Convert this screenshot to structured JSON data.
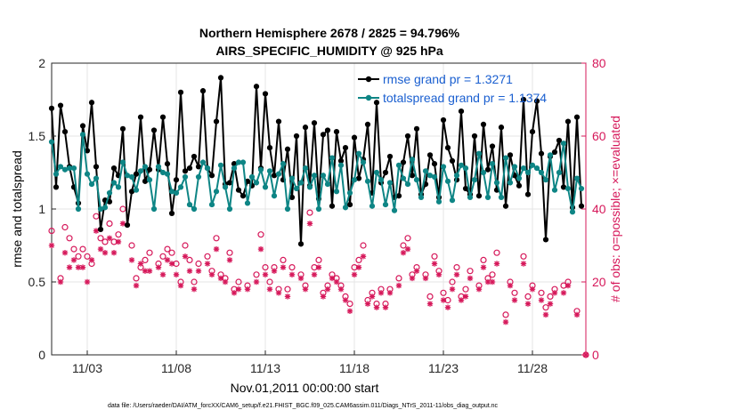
{
  "chart_data": {
    "type": "line",
    "title": "Northern Hemisphere 2678 / 2825 = 94.796%",
    "subtitle": "AIRS_SPECIFIC_HUMIDITY @ 925 hPa",
    "xlabel": "Nov.01,2011 00:00:00 start",
    "ylabel": "rmse and totalspread",
    "ylabel_right": "# of obs: o=possible; ×=evaluated",
    "xlim": [
      1,
      31
    ],
    "ylim": [
      0,
      2
    ],
    "ylim_right": [
      0,
      80
    ],
    "x_tick_labels": [
      "11/03",
      "11/08",
      "11/13",
      "11/18",
      "11/23",
      "11/28"
    ],
    "x_ticks": [
      3,
      8,
      13,
      18,
      23,
      28
    ],
    "y_tick_labels": [
      "0",
      "0.5",
      "1",
      "1.5",
      "2"
    ],
    "y_ticks": [
      0,
      0.5,
      1,
      1.5,
      2
    ],
    "y_right_tick_labels": [
      "0",
      "20",
      "40",
      "60",
      "80"
    ],
    "y_right_ticks": [
      0,
      20,
      40,
      60,
      80
    ],
    "colors": {
      "rmse": "#000000",
      "spread": "#0e8585",
      "obs": "#d6185a",
      "legend_text": "#1a5fd0",
      "grid": "#e6e6e6"
    },
    "series": [
      {
        "name": "rmse grand pr = 1.3271",
        "x": [
          1.0,
          1.25,
          1.5,
          1.75,
          2.0,
          2.25,
          2.5,
          2.75,
          3.0,
          3.25,
          3.5,
          3.75,
          4.0,
          4.25,
          4.5,
          4.75,
          5.0,
          5.25,
          5.5,
          5.75,
          6.0,
          6.25,
          6.5,
          6.75,
          7.0,
          7.25,
          7.5,
          7.75,
          8.0,
          8.25,
          8.5,
          8.75,
          9.0,
          9.25,
          9.5,
          9.75,
          10.0,
          10.25,
          10.5,
          10.75,
          11.0,
          11.25,
          11.5,
          11.75,
          12.0,
          12.25,
          12.5,
          12.75,
          13.0,
          13.25,
          13.5,
          13.75,
          14.0,
          14.25,
          14.5,
          14.75,
          15.0,
          15.25,
          15.5,
          15.75,
          16.0,
          16.25,
          16.5,
          16.75,
          17.0,
          17.25,
          17.5,
          17.75,
          18.0,
          18.25,
          18.5,
          18.75,
          19.0,
          19.25,
          19.5,
          19.75,
          20.0,
          20.25,
          20.5,
          20.75,
          21.0,
          21.25,
          21.5,
          21.75,
          22.0,
          22.25,
          22.5,
          22.75,
          23.0,
          23.25,
          23.5,
          23.75,
          24.0,
          24.25,
          24.5,
          24.75,
          25.0,
          25.25,
          25.5,
          25.75,
          26.0,
          26.25,
          26.5,
          26.75,
          27.0,
          27.25,
          27.5,
          27.75,
          28.0,
          28.25,
          28.5,
          28.75,
          29.0,
          29.25,
          29.5,
          29.75,
          30.0,
          30.25,
          30.5,
          30.75
        ],
        "values": [
          1.69,
          1.15,
          1.71,
          1.53,
          1.29,
          1.15,
          1.04,
          1.57,
          1.4,
          1.73,
          1.29,
          0.86,
          1.06,
          1.05,
          1.28,
          1.23,
          1.55,
          0.89,
          1.12,
          1.24,
          1.63,
          1.19,
          1.27,
          1.54,
          1.27,
          1.63,
          1.31,
          0.97,
          1.2,
          1.8,
          1.26,
          1.28,
          1.36,
          1.29,
          1.81,
          1.28,
          1.23,
          1.6,
          1.9,
          1.17,
          1.18,
          1.31,
          1.13,
          1.09,
          1.19,
          1.16,
          1.84,
          1.28,
          1.79,
          1.42,
          1.23,
          1.6,
          1.2,
          1.41,
          1.08,
          1.5,
          0.76,
          1.56,
          1.16,
          1.59,
          1.07,
          1.51,
          1.54,
          1.02,
          1.53,
          1.33,
          1.42,
          1.03,
          1.49,
          1.21,
          1.34,
          1.58,
          1.11,
          1.73,
          1.18,
          1.25,
          1.36,
          1.08,
          1.09,
          1.32,
          1.5,
          1.23,
          1.55,
          1.1,
          1.17,
          1.37,
          1.31,
          1.08,
          1.61,
          1.42,
          1.33,
          1.2,
          1.67,
          1.14,
          1.1,
          1.5,
          1.09,
          1.58,
          1.27,
          1.43,
          1.13,
          1.56,
          1.02,
          1.37,
          1.23,
          1.16,
          1.75,
          1.1,
          1.53,
          1.74,
          1.38,
          0.79,
          1.36,
          1.39,
          1.47,
          1.15,
          1.6,
          1.01,
          1.63,
          1.02
        ]
      },
      {
        "name": "totalspread grand pr = 1.1374",
        "x": [
          1.0,
          1.25,
          1.5,
          1.75,
          2.0,
          2.25,
          2.5,
          2.75,
          3.0,
          3.25,
          3.5,
          3.75,
          4.0,
          4.25,
          4.5,
          4.75,
          5.0,
          5.25,
          5.5,
          5.75,
          6.0,
          6.25,
          6.5,
          6.75,
          7.0,
          7.25,
          7.5,
          7.75,
          8.0,
          8.25,
          8.5,
          8.75,
          9.0,
          9.25,
          9.5,
          9.75,
          10.0,
          10.25,
          10.5,
          10.75,
          11.0,
          11.25,
          11.5,
          11.75,
          12.0,
          12.25,
          12.5,
          12.75,
          13.0,
          13.25,
          13.5,
          13.75,
          14.0,
          14.25,
          14.5,
          14.75,
          15.0,
          15.25,
          15.5,
          15.75,
          16.0,
          16.25,
          16.5,
          16.75,
          17.0,
          17.25,
          17.5,
          17.75,
          18.0,
          18.25,
          18.5,
          18.75,
          19.0,
          19.25,
          19.5,
          19.75,
          20.0,
          20.25,
          20.5,
          20.75,
          21.0,
          21.25,
          21.5,
          21.75,
          22.0,
          22.25,
          22.5,
          22.75,
          23.0,
          23.25,
          23.5,
          23.75,
          24.0,
          24.25,
          24.5,
          24.75,
          25.0,
          25.25,
          25.5,
          25.75,
          26.0,
          26.25,
          26.5,
          26.75,
          27.0,
          27.25,
          27.5,
          27.75,
          28.0,
          28.25,
          28.5,
          28.75,
          29.0,
          29.25,
          29.5,
          29.75,
          30.0,
          30.25,
          30.5,
          30.75
        ],
        "values": [
          1.46,
          1.24,
          1.29,
          1.27,
          1.28,
          1.28,
          1.0,
          1.51,
          1.24,
          1.17,
          1.21,
          1.0,
          1.01,
          1.11,
          1.18,
          1.15,
          1.32,
          1.23,
          1.22,
          1.13,
          1.26,
          1.29,
          1.2,
          1.0,
          1.29,
          1.25,
          1.24,
          1.12,
          1.11,
          1.15,
          1.22,
          1.03,
          1.0,
          1.22,
          1.32,
          1.28,
          1.03,
          1.12,
          1.3,
          1.15,
          1.0,
          1.28,
          1.32,
          1.32,
          1.04,
          1.22,
          1.18,
          1.27,
          1.15,
          1.26,
          1.09,
          1.24,
          1.31,
          1.0,
          1.21,
          1.14,
          1.18,
          1.28,
          1.15,
          1.23,
          1.0,
          1.23,
          1.17,
          1.35,
          1.12,
          1.3,
          1.01,
          1.11,
          1.2,
          1.38,
          1.32,
          1.19,
          1.02,
          1.25,
          1.2,
          1.03,
          1.18,
          0.99,
          1.3,
          1.21,
          1.17,
          1.34,
          1.2,
          1.08,
          1.26,
          1.23,
          1.22,
          1.05,
          1.29,
          1.19,
          1.06,
          1.23,
          1.3,
          1.28,
          1.08,
          1.2,
          1.38,
          1.25,
          1.08,
          1.31,
          1.18,
          1.08,
          1.35,
          1.18,
          1.29,
          1.21,
          1.28,
          1.25,
          1.3,
          1.28,
          1.25,
          1.2,
          1.37,
          1.13,
          1.25,
          1.45,
          1.14,
          0.98,
          1.21,
          1.14
        ]
      },
      {
        "name": "obs_possible",
        "x": [
          1.0,
          1.5,
          1.75,
          2.0,
          2.25,
          2.5,
          2.75,
          3.0,
          3.25,
          3.5,
          3.75,
          4.0,
          4.25,
          4.5,
          4.75,
          5.0,
          5.5,
          5.75,
          6.0,
          6.25,
          6.5,
          7.0,
          7.25,
          7.5,
          7.75,
          8.0,
          8.25,
          8.5,
          8.75,
          9.0,
          9.25,
          9.75,
          10.0,
          10.25,
          10.5,
          10.75,
          11.0,
          11.25,
          11.5,
          12.0,
          12.5,
          12.75,
          13.0,
          13.25,
          13.5,
          13.75,
          14.0,
          14.25,
          14.5,
          15.0,
          15.25,
          15.5,
          15.75,
          16.0,
          16.25,
          16.5,
          16.75,
          17.0,
          17.25,
          17.5,
          17.75,
          18.0,
          18.25,
          18.5,
          18.75,
          19.0,
          19.25,
          19.5,
          19.75,
          20.0,
          20.5,
          20.75,
          21.0,
          21.25,
          21.5,
          22.0,
          22.25,
          22.5,
          22.75,
          23.0,
          23.25,
          23.5,
          23.75,
          24.0,
          24.25,
          24.5,
          25.0,
          25.25,
          25.5,
          25.75,
          26.0,
          26.5,
          26.75,
          27.0,
          27.5,
          27.75,
          28.0,
          28.5,
          28.75,
          29.0,
          29.25,
          29.75,
          30.0,
          30.5,
          31.0
        ],
        "values": [
          34,
          21,
          35,
          32,
          29,
          27,
          29,
          27,
          25,
          38,
          32,
          31,
          36,
          31,
          33,
          40,
          30,
          21,
          24,
          26,
          28,
          25,
          27,
          29,
          28,
          25,
          20,
          30,
          26,
          20,
          25,
          27,
          23,
          32,
          22,
          21,
          28,
          18,
          20,
          19,
          22,
          33,
          24,
          20,
          24,
          18,
          26,
          18,
          24,
          22,
          19,
          39,
          24,
          26,
          17,
          19,
          22,
          21,
          19,
          16,
          14,
          24,
          26,
          30,
          15,
          17,
          14,
          18,
          14,
          18,
          21,
          30,
          32,
          22,
          24,
          22,
          16,
          27,
          23,
          17,
          15,
          20,
          24,
          16,
          18,
          23,
          19,
          26,
          21,
          22,
          28,
          11,
          20,
          17,
          27,
          16,
          19,
          17,
          13,
          16,
          18,
          19,
          20,
          12,
          0
        ]
      },
      {
        "name": "obs_evaluated",
        "x": [
          1.0,
          1.5,
          1.75,
          2.0,
          2.25,
          2.5,
          2.75,
          3.0,
          3.25,
          3.5,
          3.75,
          4.0,
          4.25,
          4.5,
          4.75,
          5.0,
          5.5,
          5.75,
          6.0,
          6.25,
          6.5,
          7.0,
          7.25,
          7.5,
          7.75,
          8.0,
          8.25,
          8.5,
          8.75,
          9.0,
          9.25,
          9.75,
          10.0,
          10.25,
          10.5,
          10.75,
          11.0,
          11.25,
          11.5,
          12.0,
          12.5,
          12.75,
          13.0,
          13.25,
          13.5,
          13.75,
          14.0,
          14.25,
          14.5,
          15.0,
          15.25,
          15.5,
          15.75,
          16.0,
          16.25,
          16.5,
          16.75,
          17.0,
          17.25,
          17.5,
          17.75,
          18.0,
          18.25,
          18.5,
          18.75,
          19.0,
          19.25,
          19.5,
          19.75,
          20.0,
          20.5,
          20.75,
          21.0,
          21.25,
          21.5,
          22.0,
          22.25,
          22.5,
          22.75,
          23.0,
          23.25,
          23.5,
          23.75,
          24.0,
          24.25,
          24.5,
          25.0,
          25.25,
          25.5,
          25.75,
          26.0,
          26.5,
          26.75,
          27.0,
          27.5,
          27.75,
          28.0,
          28.5,
          28.75,
          29.0,
          29.25,
          29.75,
          30.0,
          30.5,
          31.0
        ],
        "values": [
          30,
          20,
          28,
          24,
          26,
          24,
          24,
          20,
          26,
          34,
          29,
          28,
          32,
          28,
          31,
          36,
          26,
          19,
          25,
          23,
          23,
          24,
          22,
          26,
          25,
          22,
          19,
          27,
          23,
          18,
          23,
          25,
          22,
          29,
          21,
          20,
          26,
          17,
          18,
          18,
          20,
          29,
          22,
          18,
          23,
          17,
          24,
          16,
          22,
          21,
          18,
          36,
          22,
          24,
          16,
          18,
          21,
          20,
          18,
          15,
          12,
          22,
          24,
          27,
          14,
          16,
          13,
          17,
          13,
          17,
          19,
          28,
          29,
          21,
          23,
          21,
          14,
          25,
          22,
          15,
          13,
          18,
          22,
          15,
          16,
          21,
          18,
          24,
          20,
          20,
          25,
          9,
          19,
          15,
          25,
          14,
          18,
          15,
          11,
          14,
          17,
          17,
          19,
          11,
          0
        ]
      }
    ]
  },
  "footer": "data file: /Users/raeder/DAI/ATM_forcXX/CAM6_setup/f.e21.FHIST_BGC.f09_025.CAM6assim.011/Diags_NTrS_2011-11/obs_diag_output.nc"
}
